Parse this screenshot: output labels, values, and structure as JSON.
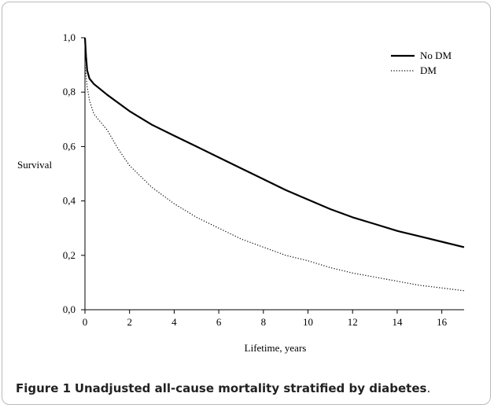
{
  "chart_data": {
    "type": "line",
    "title": "",
    "xlabel": "Lifetime, years",
    "ylabel": "Survival",
    "xlim": [
      0,
      17
    ],
    "ylim": [
      0,
      1
    ],
    "x_ticks": [
      0,
      2,
      4,
      6,
      8,
      10,
      12,
      14,
      16
    ],
    "y_ticks": [
      "0,0",
      "0,2",
      "0,4",
      "0,6",
      "0,8",
      "1,0"
    ],
    "y_tick_values": [
      0,
      0.2,
      0.4,
      0.6,
      0.8,
      1.0
    ],
    "grid": false,
    "legend_position": "top-right",
    "series": [
      {
        "name": "No DM",
        "style": "solid",
        "color": "#000000",
        "x": [
          0,
          0.05,
          0.1,
          0.2,
          0.4,
          0.7,
          1,
          1.5,
          2,
          3,
          4,
          5,
          6,
          7,
          8,
          9,
          10,
          11,
          12,
          13,
          14,
          15,
          16,
          17
        ],
        "y": [
          1.0,
          0.93,
          0.88,
          0.85,
          0.83,
          0.81,
          0.79,
          0.76,
          0.73,
          0.68,
          0.64,
          0.6,
          0.56,
          0.52,
          0.48,
          0.44,
          0.405,
          0.37,
          0.34,
          0.315,
          0.29,
          0.27,
          0.25,
          0.23
        ]
      },
      {
        "name": "DM",
        "style": "dotted",
        "color": "#000000",
        "x": [
          0,
          0.05,
          0.1,
          0.2,
          0.4,
          0.7,
          1,
          1.5,
          2,
          3,
          4,
          5,
          6,
          7,
          8,
          9,
          10,
          11,
          12,
          13,
          14,
          15,
          16,
          17
        ],
        "y": [
          0.9,
          0.86,
          0.82,
          0.77,
          0.72,
          0.69,
          0.66,
          0.59,
          0.53,
          0.45,
          0.39,
          0.34,
          0.3,
          0.26,
          0.23,
          0.2,
          0.18,
          0.155,
          0.135,
          0.12,
          0.105,
          0.09,
          0.08,
          0.07
        ]
      }
    ]
  },
  "caption": {
    "label": "Figure 1",
    "text": "Unadjusted all-cause mortality stratified by diabetes",
    "end": "."
  }
}
